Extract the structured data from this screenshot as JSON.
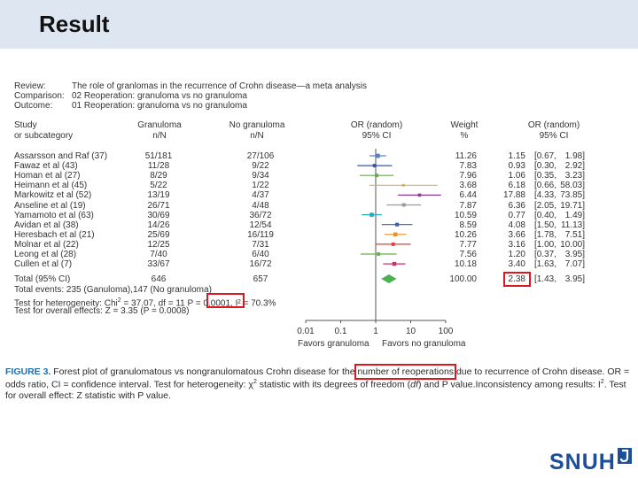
{
  "header": {
    "title": "Result"
  },
  "meta": [
    {
      "label": "Review:",
      "value": "The role of granlomas in the recurrence of Crohn disease—a meta analysis"
    },
    {
      "label": "Comparison:",
      "value": "02 Reoperation: granuloma vs no granuloma"
    },
    {
      "label": "Outcome:",
      "value": "01 Reoperation: granuloma vs no granuloma"
    }
  ],
  "columns": {
    "study": [
      "Study",
      "or subcategory"
    ],
    "granuloma": [
      "Granuloma",
      "n/N"
    ],
    "no_granuloma": [
      "No granuloma",
      "n/N"
    ],
    "or_plot": [
      "OR (random)",
      "95% CI"
    ],
    "weight": [
      "Weight",
      "%"
    ],
    "or_value": [
      "OR (random)",
      "95% CI"
    ]
  },
  "studies": [
    {
      "name": "Assarsson and Raf (37)",
      "gran": "51/181",
      "nogran": "27/106",
      "weight": "11.26",
      "or": "1.15",
      "ci_l": "[0.67,",
      "ci_u": "1.98]",
      "or_num": 1.15,
      "lo": 0.67,
      "hi": 1.98,
      "color": "#5a7fbf"
    },
    {
      "name": "Fawaz et al (43)",
      "gran": "11/28",
      "nogran": "9/22",
      "weight": "7.83",
      "or": "0.93",
      "ci_l": "[0.30,",
      "ci_u": "2.92]",
      "or_num": 0.93,
      "lo": 0.3,
      "hi": 2.92,
      "color": "#2e58a8"
    },
    {
      "name": "Homan et al (27)",
      "gran": "8/29",
      "nogran": "9/34",
      "weight": "7.96",
      "or": "1.06",
      "ci_l": "[0.35,",
      "ci_u": "3.23]",
      "or_num": 1.06,
      "lo": 0.35,
      "hi": 3.23,
      "color": "#6aa84f"
    },
    {
      "name": "Heimann et al (45)",
      "gran": "5/22",
      "nogran": "1/22",
      "weight": "3.68",
      "or": "6.18",
      "ci_l": "[0.66,",
      "ci_u": "58.03]",
      "or_num": 6.18,
      "lo": 0.66,
      "hi": 58.03,
      "color": "#c9b26a"
    },
    {
      "name": "Markowitz et al (52)",
      "gran": "13/19",
      "nogran": "4/37",
      "weight": "6.44",
      "or": "17.88",
      "ci_l": "[4.33,",
      "ci_u": "73.85]",
      "or_num": 17.88,
      "lo": 4.33,
      "hi": 73.85,
      "color": "#8e3a9a"
    },
    {
      "name": "Anseline et al (19)",
      "gran": "26/71",
      "nogran": "4/48",
      "weight": "7.87",
      "or": "6.36",
      "ci_l": "[2.05,",
      "ci_u": "19.71]",
      "or_num": 6.36,
      "lo": 2.05,
      "hi": 19.71,
      "color": "#999999"
    },
    {
      "name": "Yamamoto et al (63)",
      "gran": "30/69",
      "nogran": "36/72",
      "weight": "10.59",
      "or": "0.77",
      "ci_l": "[0.40,",
      "ci_u": "1.49]",
      "or_num": 0.77,
      "lo": 0.4,
      "hi": 1.49,
      "color": "#2aa4b8"
    },
    {
      "name": "Avidan et al (38)",
      "gran": "14/26",
      "nogran": "12/54",
      "weight": "8.59",
      "or": "4.08",
      "ci_l": "[1.50,",
      "ci_u": "11.13]",
      "or_num": 4.08,
      "lo": 1.5,
      "hi": 11.13,
      "color": "#3a5fa8"
    },
    {
      "name": "Heresbach et al (21)",
      "gran": "25/69",
      "nogran": "16/119",
      "weight": "10.26",
      "or": "3.66",
      "ci_l": "[1.78,",
      "ci_u": "7.51]",
      "or_num": 3.66,
      "lo": 1.78,
      "hi": 7.51,
      "color": "#e8912b"
    },
    {
      "name": "Molnar et al (22)",
      "gran": "12/25",
      "nogran": "7/31",
      "weight": "7.77",
      "or": "3.16",
      "ci_l": "[1.00,",
      "ci_u": "10.00]",
      "or_num": 3.16,
      "lo": 1.0,
      "hi": 10.0,
      "color": "#d6453a"
    },
    {
      "name": "Leong et al (28)",
      "gran": "7/40",
      "nogran": "6/40",
      "weight": "7.56",
      "or": "1.20",
      "ci_l": "[0.37,",
      "ci_u": "3.95]",
      "or_num": 1.2,
      "lo": 0.37,
      "hi": 3.95,
      "color": "#6fae4a"
    },
    {
      "name": "Cullen et al (7)",
      "gran": "33/67",
      "nogran": "16/72",
      "weight": "10.18",
      "or": "3.40",
      "ci_l": "[1.63,",
      "ci_u": "7.07]",
      "or_num": 3.4,
      "lo": 1.63,
      "hi": 7.07,
      "color": "#c2336a"
    }
  ],
  "total": {
    "label": "Total (95% CI)",
    "gran": "646",
    "nogran": "657",
    "weight": "100.00",
    "or": "2.38",
    "ci_l": "[1.43,",
    "ci_u": "3.95]",
    "or_num": 2.38,
    "lo": 1.43,
    "hi": 3.95,
    "color": "#4caf50"
  },
  "stats": {
    "events_prefix": "Total events: 235 (Ganuloma),",
    "events_suffix": "147 (No granuloma)",
    "het_prefix": "Test for heterogeneity: Chi",
    "het_sup": "2",
    "het_df": " = 37.07, df = 11",
    "het_p": "P = 0.0001",
    "het_i2": ", I² = 70.3%",
    "overall": "Test for overall effects: Z = 3.35 (P = 0.0008)"
  },
  "axis": {
    "ticks": [
      "0.01",
      "0.1",
      "1",
      "10",
      "100"
    ],
    "tick_values": [
      0.01,
      0.1,
      1,
      10,
      100
    ],
    "favors_left": "Favors granuloma",
    "favors_right": "Favors no granuloma"
  },
  "caption": {
    "lead": "FIGURE 3.",
    "part1": " Forest plot of granulomatous vs nongranulomatous Crohn disease for the ",
    "highlight": "number of reoperations",
    "part2": " due to recurrence of Crohn disease. OR = odds ratio, CI = confidence interval. Test for heterogeneity: χ",
    "part2_sup": "2",
    "part3": " statistic with its degrees of freedom (",
    "df": "df",
    "part4": ") and P value.Inconsistency among results: I",
    "part4_sup": "2",
    "part5": ". Test for overall effect: Z statistic with P value."
  },
  "logo": {
    "text": "SNUH"
  },
  "colors": {
    "highlight_box": "#e0161e",
    "caption_lead": "#1a6fb5",
    "logo": "#1b4f9b"
  }
}
